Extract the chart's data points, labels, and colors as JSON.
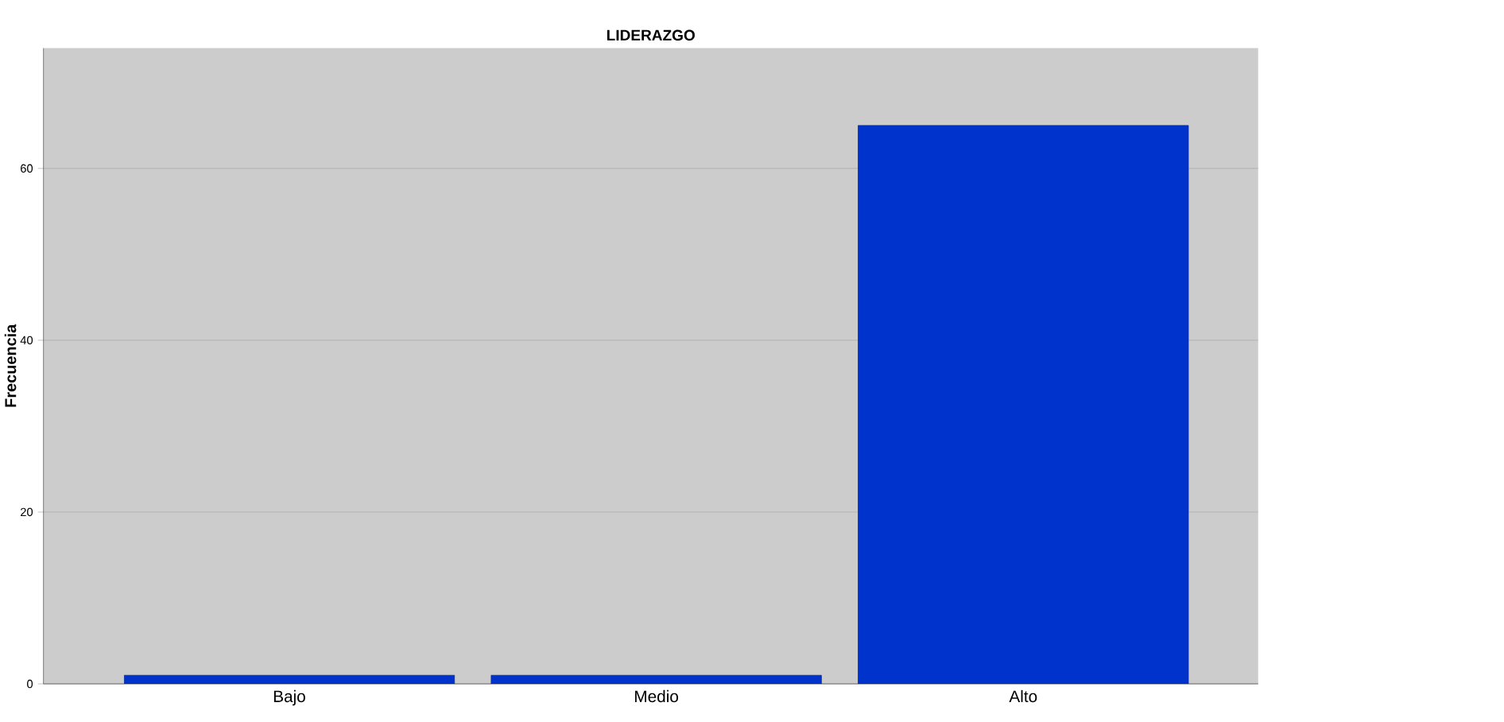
{
  "chart_data": {
    "type": "bar",
    "title": "LIDERAZGO",
    "ylabel": "Frecuencia",
    "categories": [
      "Bajo",
      "Medio",
      "Alto"
    ],
    "values": [
      1,
      1,
      65
    ],
    "color": "#0033cc",
    "ylim": [
      0,
      74
    ],
    "yticks": [
      0,
      20,
      40,
      60
    ],
    "grid": "y"
  }
}
